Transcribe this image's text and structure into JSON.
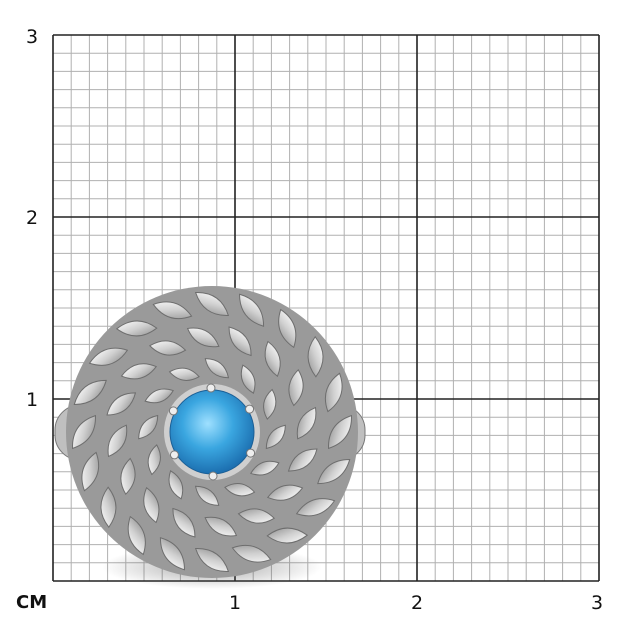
{
  "scale": {
    "unit_label": "CM",
    "x_ticks": [
      "1",
      "2",
      "3"
    ],
    "y_ticks": [
      "1",
      "2",
      "3"
    ],
    "range_cm": [
      0,
      3
    ],
    "subdivisions_per_cm": 10
  },
  "product": {
    "type": "ring",
    "center_stone_color": "#3aa6e0",
    "side_stone_color": "#d8d8d8",
    "metal_color": "#bfbfbf"
  },
  "colors": {
    "major_grid": "#222222",
    "minor_grid": "#b0b0b0"
  }
}
